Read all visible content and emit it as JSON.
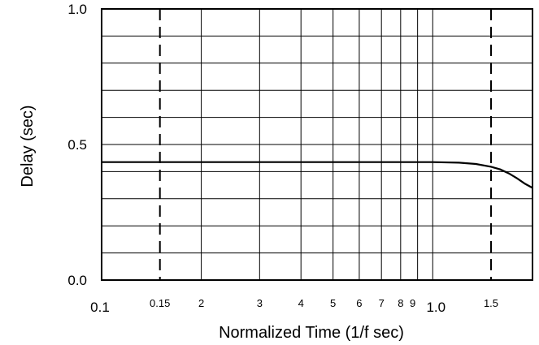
{
  "chart_data": {
    "type": "line",
    "xlabel": "Normalized Time (1/f sec)",
    "ylabel": "Delay (sec)",
    "x_scale": "log",
    "xlim": [
      0.1,
      2.0
    ],
    "ylim": [
      0.0,
      1.0
    ],
    "grid": true,
    "y_ticks": [
      {
        "value": 0.0,
        "label": "0.0"
      },
      {
        "value": 0.5,
        "label": "0.5"
      },
      {
        "value": 1.0,
        "label": "1.0"
      }
    ],
    "y_gridlines": [
      0.1,
      0.2,
      0.3,
      0.4,
      0.5,
      0.6,
      0.7,
      0.8,
      0.9
    ],
    "x_ticks": [
      {
        "value": 0.1,
        "label": "0.1"
      },
      {
        "value": 0.15,
        "label": "0.15"
      },
      {
        "value": 0.2,
        "label": "2"
      },
      {
        "value": 0.3,
        "label": "3"
      },
      {
        "value": 0.4,
        "label": "4"
      },
      {
        "value": 0.5,
        "label": "5"
      },
      {
        "value": 0.6,
        "label": "6"
      },
      {
        "value": 0.7,
        "label": "7"
      },
      {
        "value": 0.8,
        "label": "8"
      },
      {
        "value": 0.9,
        "label": "9"
      },
      {
        "value": 1.0,
        "label": "1.0"
      },
      {
        "value": 1.5,
        "label": "1.5"
      }
    ],
    "x_gridlines": [
      0.2,
      0.3,
      0.4,
      0.5,
      0.6,
      0.7,
      0.8,
      0.9,
      1.0
    ],
    "dashed_verticals": [
      0.15,
      1.5
    ],
    "series": [
      {
        "x": [
          0.1,
          0.15,
          0.2,
          0.3,
          0.5,
          0.8,
          1.0,
          1.2,
          1.35,
          1.5,
          1.6,
          1.7,
          1.8,
          1.9,
          2.0
        ],
        "y": [
          0.435,
          0.435,
          0.435,
          0.435,
          0.435,
          0.435,
          0.435,
          0.433,
          0.428,
          0.418,
          0.408,
          0.393,
          0.375,
          0.355,
          0.34
        ]
      }
    ]
  }
}
